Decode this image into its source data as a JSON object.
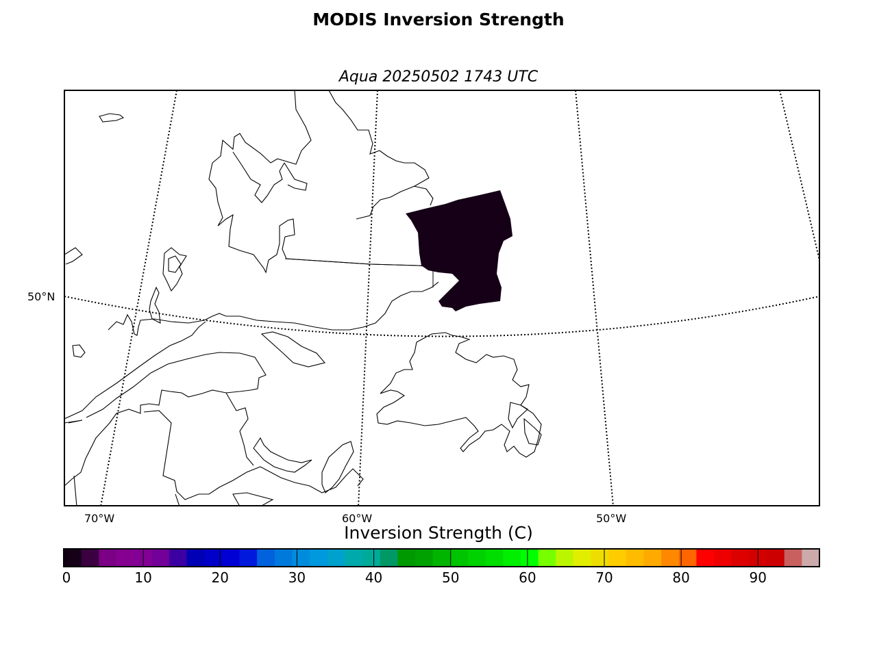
{
  "title": "MODIS Inversion Strength",
  "subtitle": "Aqua 20250502 1743 UTC",
  "map": {
    "lat_labels": [
      "50°N"
    ],
    "lon_labels": [
      "70°W",
      "60°W",
      "50°W"
    ],
    "data_color": "#150017"
  },
  "colorbar": {
    "label": "Inversion Strength (C)",
    "min": 0,
    "max": 98,
    "ticks": [
      "0",
      "10",
      "20",
      "30",
      "40",
      "50",
      "60",
      "70",
      "80",
      "90"
    ],
    "tick_values": [
      0,
      10,
      20,
      30,
      40,
      50,
      60,
      70,
      80,
      90
    ],
    "colors": [
      "#150017",
      "#3a0040",
      "#7b0086",
      "#850091",
      "#830095",
      "#74009a",
      "#3c00a2",
      "#0000b4",
      "#0000c8",
      "#0000d4",
      "#0019dc",
      "#0062dd",
      "#0079dd",
      "#008cdd",
      "#0099dd",
      "#00a1cc",
      "#00aaaa",
      "#00aa99",
      "#009966",
      "#009900",
      "#00a100",
      "#00b400",
      "#00c400",
      "#00d100",
      "#00dd00",
      "#00ee00",
      "#00ff00",
      "#77ff00",
      "#bbf600",
      "#e2ee00",
      "#eedd00",
      "#ffcc00",
      "#ffbb00",
      "#ffaa00",
      "#ff8800",
      "#ff6600",
      "#ff0000",
      "#ee0000",
      "#dd0000",
      "#d20000",
      "#cc0000",
      "#c86060",
      "#ccaaaa"
    ]
  },
  "chart_data": {
    "type": "heatmap",
    "title": "MODIS Inversion Strength",
    "subtitle": "Aqua 20250502 1743 UTC",
    "colorbar_label": "Inversion Strength (C)",
    "value_range": [
      0,
      98
    ],
    "observed_values": "near 0",
    "grid": "on"
  }
}
